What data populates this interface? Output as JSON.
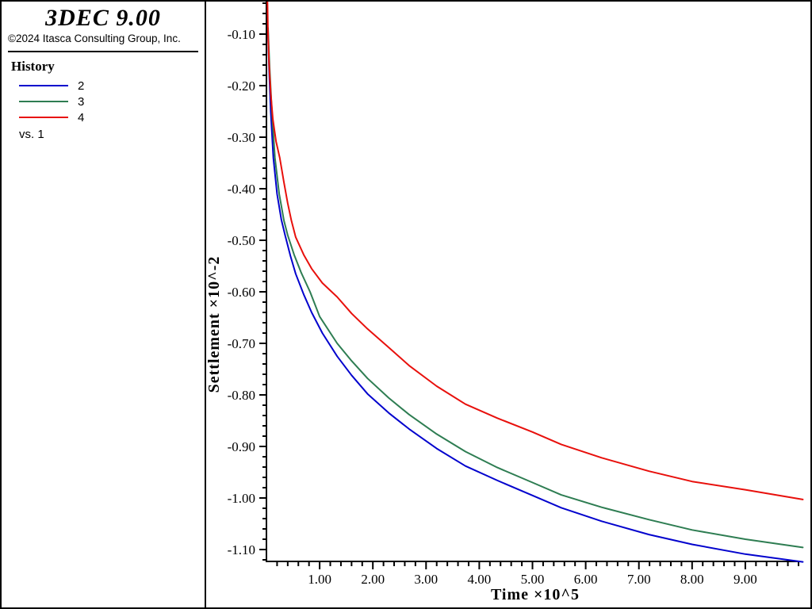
{
  "window": {
    "title": "3DEC 9.00"
  },
  "sidebar": {
    "app_title": "3DEC 9.00",
    "copyright": "©2024 Itasca Consulting Group, Inc.",
    "legend_title": "History",
    "vs_label": "vs. 1"
  },
  "chart_data": {
    "type": "line",
    "title": "",
    "xlabel": "Time ×10^5",
    "ylabel": "Settlement ×10^-2",
    "grid": false,
    "legend_position": "left-sidebar",
    "x_range": [
      0,
      10.08
    ],
    "y_range": [
      -1.125,
      0
    ],
    "x_axis_end": 10.0,
    "x_minor_step": 0.2,
    "y_minor_step": 0.02,
    "x_major_ticks": [
      1,
      2,
      3,
      4,
      5,
      6,
      7,
      8,
      9
    ],
    "x_tick_labels": [
      "1.00",
      "2.00",
      "3.00",
      "4.00",
      "5.00",
      "6.00",
      "7.00",
      "8.00",
      "9.00"
    ],
    "y_major_ticks": [
      -0.1,
      -0.2,
      -0.3,
      -0.4,
      -0.5,
      -0.6,
      -0.7,
      -0.8,
      -0.9,
      -1.0,
      -1.1
    ],
    "y_tick_labels": [
      "-0.10",
      "-0.20",
      "-0.30",
      "-0.40",
      "-0.50",
      "-0.60",
      "-0.70",
      "-0.80",
      "-0.90",
      "-1.00",
      "-1.10"
    ],
    "series": [
      {
        "name": "2",
        "color": "#0202cd",
        "points": [
          [
            0.03,
            -0.095
          ],
          [
            0.05,
            -0.17
          ],
          [
            0.08,
            -0.25
          ],
          [
            0.13,
            -0.34
          ],
          [
            0.2,
            -0.41
          ],
          [
            0.28,
            -0.46
          ],
          [
            0.35,
            -0.49
          ],
          [
            0.45,
            -0.53
          ],
          [
            0.55,
            -0.565
          ],
          [
            0.7,
            -0.605
          ],
          [
            0.85,
            -0.64
          ],
          [
            1.05,
            -0.68
          ],
          [
            1.33,
            -0.725
          ],
          [
            1.6,
            -0.762
          ],
          [
            1.9,
            -0.798
          ],
          [
            2.3,
            -0.835
          ],
          [
            2.68,
            -0.866
          ],
          [
            3.2,
            -0.904
          ],
          [
            3.74,
            -0.938
          ],
          [
            4.34,
            -0.966
          ],
          [
            5.0,
            -0.995
          ],
          [
            5.54,
            -1.019
          ],
          [
            6.3,
            -1.045
          ],
          [
            7.19,
            -1.071
          ],
          [
            8.0,
            -1.09
          ],
          [
            9.0,
            -1.109
          ],
          [
            10.08,
            -1.124
          ]
        ]
      },
      {
        "name": "3",
        "color": "#2e7d52",
        "points": [
          [
            0.03,
            -0.088
          ],
          [
            0.06,
            -0.165
          ],
          [
            0.1,
            -0.245
          ],
          [
            0.16,
            -0.34
          ],
          [
            0.24,
            -0.41
          ],
          [
            0.33,
            -0.462
          ],
          [
            0.4,
            -0.49
          ],
          [
            0.52,
            -0.528
          ],
          [
            0.65,
            -0.562
          ],
          [
            0.82,
            -0.6
          ],
          [
            1.0,
            -0.648
          ],
          [
            1.33,
            -0.7
          ],
          [
            1.6,
            -0.734
          ],
          [
            1.9,
            -0.768
          ],
          [
            2.3,
            -0.806
          ],
          [
            2.68,
            -0.838
          ],
          [
            3.2,
            -0.876
          ],
          [
            3.74,
            -0.91
          ],
          [
            4.34,
            -0.941
          ],
          [
            5.0,
            -0.97
          ],
          [
            5.54,
            -0.994
          ],
          [
            6.3,
            -1.018
          ],
          [
            7.19,
            -1.042
          ],
          [
            8.0,
            -1.062
          ],
          [
            9.0,
            -1.08
          ],
          [
            10.08,
            -1.096
          ]
        ]
      },
      {
        "name": "4",
        "color": "#e8100c",
        "points": [
          [
            0.02,
            -0.037
          ],
          [
            0.03,
            -0.1
          ],
          [
            0.05,
            -0.16
          ],
          [
            0.08,
            -0.215
          ],
          [
            0.12,
            -0.265
          ],
          [
            0.18,
            -0.308
          ],
          [
            0.25,
            -0.34
          ],
          [
            0.33,
            -0.388
          ],
          [
            0.4,
            -0.428
          ],
          [
            0.47,
            -0.462
          ],
          [
            0.55,
            -0.494
          ],
          [
            0.7,
            -0.528
          ],
          [
            0.85,
            -0.555
          ],
          [
            1.05,
            -0.583
          ],
          [
            1.33,
            -0.61
          ],
          [
            1.6,
            -0.642
          ],
          [
            1.9,
            -0.672
          ],
          [
            2.3,
            -0.708
          ],
          [
            2.68,
            -0.743
          ],
          [
            3.2,
            -0.783
          ],
          [
            3.74,
            -0.818
          ],
          [
            4.34,
            -0.845
          ],
          [
            5.0,
            -0.872
          ],
          [
            5.54,
            -0.896
          ],
          [
            6.3,
            -0.922
          ],
          [
            7.19,
            -0.948
          ],
          [
            8.0,
            -0.968
          ],
          [
            9.0,
            -0.984
          ],
          [
            10.08,
            -1.003
          ]
        ]
      }
    ]
  }
}
